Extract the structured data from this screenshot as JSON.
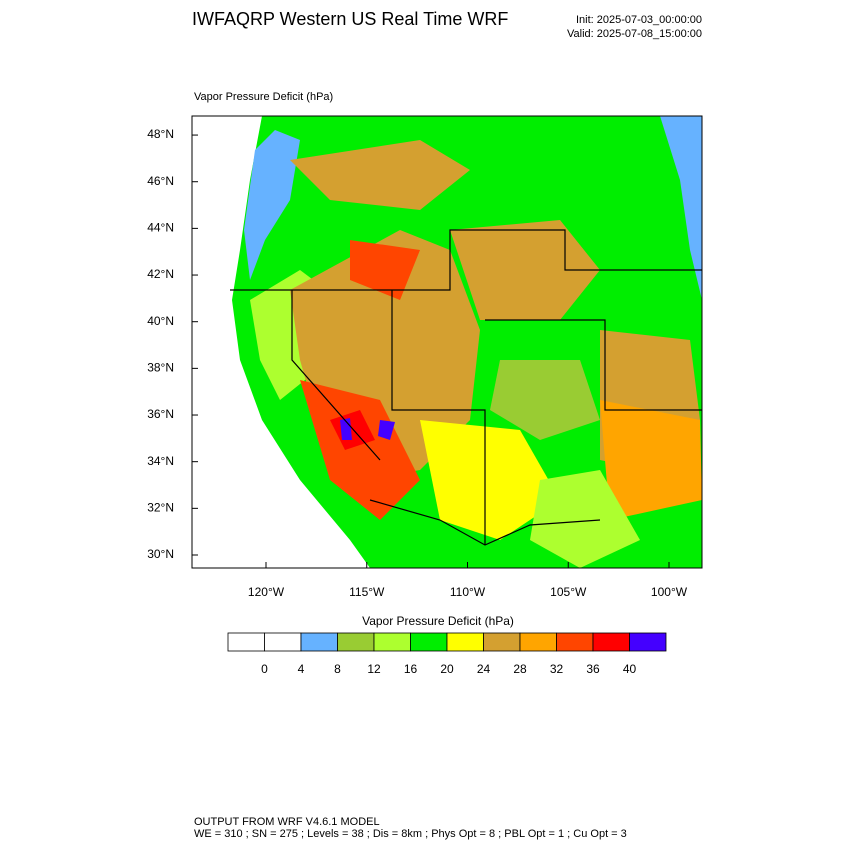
{
  "header": {
    "title": "IWFAQRP Western US Real Time WRF",
    "init": "Init: 2025-07-03_00:00:00",
    "valid": "Valid: 2025-07-08_15:00:00"
  },
  "map": {
    "label": "Vapor Pressure Deficit   (hPa)",
    "lat_ticks": [
      {
        "value": 30,
        "label": "30°N"
      },
      {
        "value": 32,
        "label": "32°N"
      },
      {
        "value": 34,
        "label": "34°N"
      },
      {
        "value": 36,
        "label": "36°N"
      },
      {
        "value": 38,
        "label": "38°N"
      },
      {
        "value": 40,
        "label": "40°N"
      },
      {
        "value": 42,
        "label": "42°N"
      },
      {
        "value": 44,
        "label": "44°N"
      },
      {
        "value": 46,
        "label": "46°N"
      },
      {
        "value": 48,
        "label": "48°N"
      }
    ],
    "lon_ticks": [
      {
        "value": -120,
        "label": "120°W"
      },
      {
        "value": -115,
        "label": "115°W"
      },
      {
        "value": -110,
        "label": "110°W"
      },
      {
        "value": -105,
        "label": "105°W"
      },
      {
        "value": -100,
        "label": "100°W"
      }
    ]
  },
  "colorbar": {
    "title": "Vapor Pressure Deficit  (hPa)",
    "levels": [
      0,
      4,
      8,
      12,
      16,
      20,
      24,
      28,
      32,
      36,
      40
    ],
    "colors": [
      "#ffffff",
      "#ffffff",
      "#66b2ff",
      "#99cc33",
      "#adff2f",
      "#00ee00",
      "#ffff00",
      "#d4a030",
      "#ffa500",
      "#ff4500",
      "#ff0000",
      "#4400ff"
    ]
  },
  "footer": {
    "line1": "OUTPUT FROM WRF V4.6.1 MODEL",
    "line2": "WE = 310 ; SN = 275 ; Levels = 38 ; Dis = 8km ; Phys Opt = 8 ; PBL Opt = 1 ; Cu Opt = 3"
  }
}
